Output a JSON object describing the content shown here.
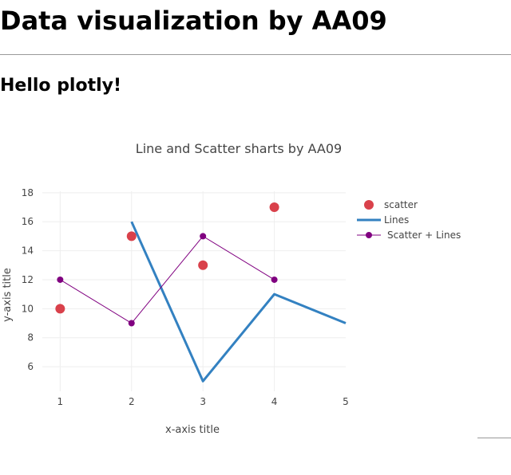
{
  "page": {
    "title": "Data visualization by AA09",
    "subtitle": "Hello plotly!"
  },
  "chart_data": {
    "type": "line",
    "title": "Line and Scatter sharts by AA09",
    "xlabel": "x-axis title",
    "ylabel": "y-axis title",
    "xlim": [
      0.75,
      5
    ],
    "ylim": [
      4.3,
      18.1
    ],
    "x_ticks": [
      1,
      2,
      3,
      4,
      5
    ],
    "y_ticks": [
      6,
      8,
      10,
      12,
      14,
      16,
      18
    ],
    "grid": true,
    "legend": "top-right",
    "series": [
      {
        "name": "scatter",
        "mode": "markers",
        "color": "#d9414b",
        "x": [
          1,
          2,
          3,
          4
        ],
        "y": [
          10,
          15,
          13,
          17
        ]
      },
      {
        "name": "Lines",
        "mode": "lines",
        "color": "#3381c1",
        "x": [
          2,
          3,
          4,
          5
        ],
        "y": [
          16,
          5,
          11,
          9
        ]
      },
      {
        "name": "Scatter + Lines",
        "mode": "lines+markers",
        "color": "#800080",
        "x": [
          1,
          2,
          3,
          4
        ],
        "y": [
          12,
          9,
          15,
          12
        ]
      }
    ]
  }
}
